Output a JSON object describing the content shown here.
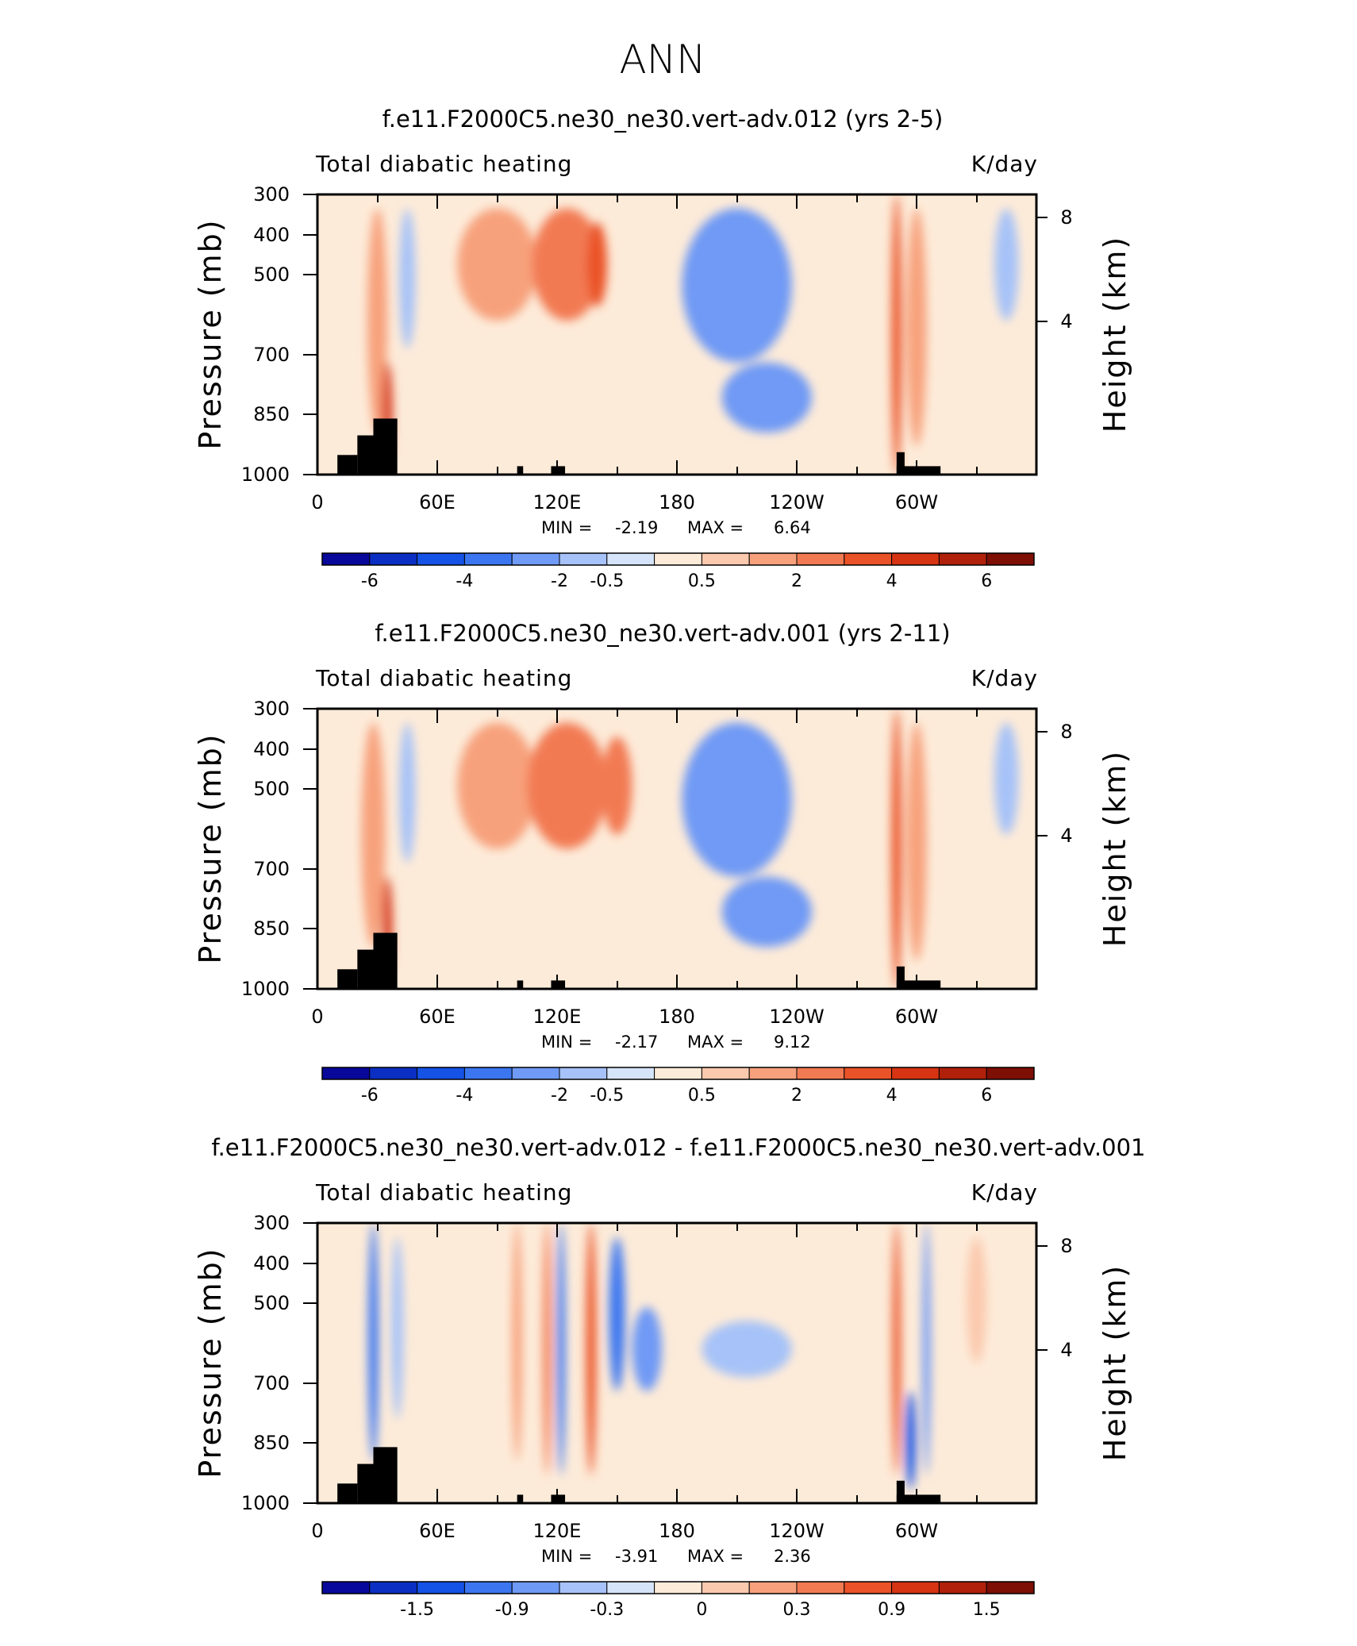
{
  "page": {
    "main_title": "ANN"
  },
  "chart_data": [
    {
      "type": "heatmap",
      "title": "f.e11.F2000C5.ne30_ne30.vert-adv.012 (yrs 2-5)",
      "left_label": "Total diabatic heating",
      "right_label": "K/day",
      "ylabel": "Pressure (mb)",
      "y2label": "Height (km)",
      "yticks": [
        "300",
        "400",
        "500",
        "700",
        "850",
        "1000"
      ],
      "y2ticks": [
        "8",
        "4"
      ],
      "xticks": [
        "0",
        "60E",
        "120E",
        "180",
        "120W",
        "60W"
      ],
      "min_label": "MIN =",
      "min_value": "-2.19",
      "max_label": "MAX =",
      "max_value": "6.64",
      "colorbar_ticks": [
        "-6",
        "-4",
        "-2",
        "-0.5",
        "0.5",
        "2",
        "4",
        "6"
      ],
      "colorbar_colors": [
        "#08089a",
        "#0a2fc2",
        "#1552e6",
        "#3b76f0",
        "#6f9af5",
        "#a6c2f8",
        "#d6e4fa",
        "#fdebd9",
        "#fbc9ad",
        "#f7a17c",
        "#f27a52",
        "#ea5228",
        "#d63412",
        "#b0200a",
        "#7d0f05"
      ],
      "features": [
        {
          "lon": 30,
          "width": 10,
          "top": 0.05,
          "bottom": 0.85,
          "level": 2
        },
        {
          "lon": 35,
          "width": 5,
          "top": 0.6,
          "bottom": 0.95,
          "level": 5
        },
        {
          "lon": 45,
          "width": 8,
          "top": 0.05,
          "bottom": 0.55,
          "level": -1
        },
        {
          "lon": 90,
          "width": 40,
          "top": 0.05,
          "bottom": 0.45,
          "level": 2
        },
        {
          "lon": 125,
          "width": 35,
          "top": 0.05,
          "bottom": 0.45,
          "level": 3
        },
        {
          "lon": 140,
          "width": 10,
          "top": 0.1,
          "bottom": 0.4,
          "level": 4
        },
        {
          "lon": 210,
          "width": 55,
          "top": 0.05,
          "bottom": 0.6,
          "level": -2
        },
        {
          "lon": 225,
          "width": 45,
          "top": 0.6,
          "bottom": 0.85,
          "level": -2
        },
        {
          "lon": 290,
          "width": 5,
          "top": 0.0,
          "bottom": 1.0,
          "level": 4
        },
        {
          "lon": 300,
          "width": 10,
          "top": 0.05,
          "bottom": 0.9,
          "level": 2
        },
        {
          "lon": 345,
          "width": 12,
          "top": 0.05,
          "bottom": 0.45,
          "level": -1
        }
      ]
    },
    {
      "type": "heatmap",
      "title": "f.e11.F2000C5.ne30_ne30.vert-adv.001 (yrs 2-11)",
      "left_label": "Total diabatic heating",
      "right_label": "K/day",
      "ylabel": "Pressure (mb)",
      "y2label": "Height (km)",
      "yticks": [
        "300",
        "400",
        "500",
        "700",
        "850",
        "1000"
      ],
      "y2ticks": [
        "8",
        "4"
      ],
      "xticks": [
        "0",
        "60E",
        "120E",
        "180",
        "120W",
        "60W"
      ],
      "min_label": "MIN =",
      "min_value": "-2.17",
      "max_label": "MAX =",
      "max_value": "9.12",
      "colorbar_ticks": [
        "-6",
        "-4",
        "-2",
        "-0.5",
        "0.5",
        "2",
        "4",
        "6"
      ],
      "colorbar_colors": [
        "#08089a",
        "#0a2fc2",
        "#1552e6",
        "#3b76f0",
        "#6f9af5",
        "#a6c2f8",
        "#d6e4fa",
        "#fdebd9",
        "#fbc9ad",
        "#f7a17c",
        "#f27a52",
        "#ea5228",
        "#d63412",
        "#b0200a",
        "#7d0f05"
      ],
      "features": [
        {
          "lon": 28,
          "width": 12,
          "top": 0.05,
          "bottom": 0.85,
          "level": 2
        },
        {
          "lon": 35,
          "width": 5,
          "top": 0.6,
          "bottom": 0.95,
          "level": 5
        },
        {
          "lon": 45,
          "width": 8,
          "top": 0.05,
          "bottom": 0.55,
          "level": -1
        },
        {
          "lon": 90,
          "width": 40,
          "top": 0.05,
          "bottom": 0.5,
          "level": 2
        },
        {
          "lon": 125,
          "width": 40,
          "top": 0.05,
          "bottom": 0.5,
          "level": 3
        },
        {
          "lon": 150,
          "width": 15,
          "top": 0.1,
          "bottom": 0.45,
          "level": 3
        },
        {
          "lon": 210,
          "width": 55,
          "top": 0.05,
          "bottom": 0.6,
          "level": -2
        },
        {
          "lon": 225,
          "width": 45,
          "top": 0.6,
          "bottom": 0.85,
          "level": -2
        },
        {
          "lon": 290,
          "width": 5,
          "top": 0.0,
          "bottom": 1.0,
          "level": 4
        },
        {
          "lon": 300,
          "width": 10,
          "top": 0.05,
          "bottom": 0.9,
          "level": 2
        },
        {
          "lon": 345,
          "width": 12,
          "top": 0.05,
          "bottom": 0.45,
          "level": -1
        }
      ]
    },
    {
      "type": "heatmap",
      "title": "f.e11.F2000C5.ne30_ne30.vert-adv.012 - f.e11.F2000C5.ne30_ne30.vert-adv.001",
      "left_label": "Total diabatic heating",
      "right_label": "K/day",
      "ylabel": "Pressure (mb)",
      "y2label": "Height (km)",
      "yticks": [
        "300",
        "400",
        "500",
        "700",
        "850",
        "1000"
      ],
      "y2ticks": [
        "8",
        "4"
      ],
      "xticks": [
        "0",
        "60E",
        "120E",
        "180",
        "120W",
        "60W"
      ],
      "min_label": "MIN =",
      "min_value": "-3.91",
      "max_label": "MAX =",
      "max_value": "2.36",
      "colorbar_ticks": [
        "-1.5",
        "-0.9",
        "-0.3",
        "0",
        "0.3",
        "0.9",
        "1.5"
      ],
      "colorbar_colors": [
        "#08089a",
        "#0a2fc2",
        "#1552e6",
        "#3b76f0",
        "#6f9af5",
        "#a6c2f8",
        "#d6e4fa",
        "#fdebd9",
        "#fbc9ad",
        "#f7a17c",
        "#f27a52",
        "#ea5228",
        "#d63412",
        "#b0200a",
        "#7d0f05"
      ],
      "features": [
        {
          "lon": 28,
          "width": 5,
          "top": 0.0,
          "bottom": 0.85,
          "level": -3
        },
        {
          "lon": 40,
          "width": 6,
          "top": 0.05,
          "bottom": 0.7,
          "level": -1
        },
        {
          "lon": 100,
          "width": 5,
          "top": 0.0,
          "bottom": 0.85,
          "level": 2
        },
        {
          "lon": 115,
          "width": 4,
          "top": 0.0,
          "bottom": 0.9,
          "level": 3
        },
        {
          "lon": 122,
          "width": 4,
          "top": 0.0,
          "bottom": 0.9,
          "level": -3
        },
        {
          "lon": 137,
          "width": 5,
          "top": 0.0,
          "bottom": 0.9,
          "level": 4
        },
        {
          "lon": 150,
          "width": 8,
          "top": 0.05,
          "bottom": 0.6,
          "level": -3
        },
        {
          "lon": 165,
          "width": 15,
          "top": 0.3,
          "bottom": 0.6,
          "level": -2
        },
        {
          "lon": 215,
          "width": 45,
          "top": 0.35,
          "bottom": 0.55,
          "level": -1
        },
        {
          "lon": 290,
          "width": 4,
          "top": 0.0,
          "bottom": 0.9,
          "level": 4
        },
        {
          "lon": 297,
          "width": 5,
          "top": 0.6,
          "bottom": 0.95,
          "level": -4
        },
        {
          "lon": 305,
          "width": 4,
          "top": 0.0,
          "bottom": 0.9,
          "level": -2
        },
        {
          "lon": 330,
          "width": 10,
          "top": 0.05,
          "bottom": 0.5,
          "level": 1
        }
      ]
    }
  ]
}
